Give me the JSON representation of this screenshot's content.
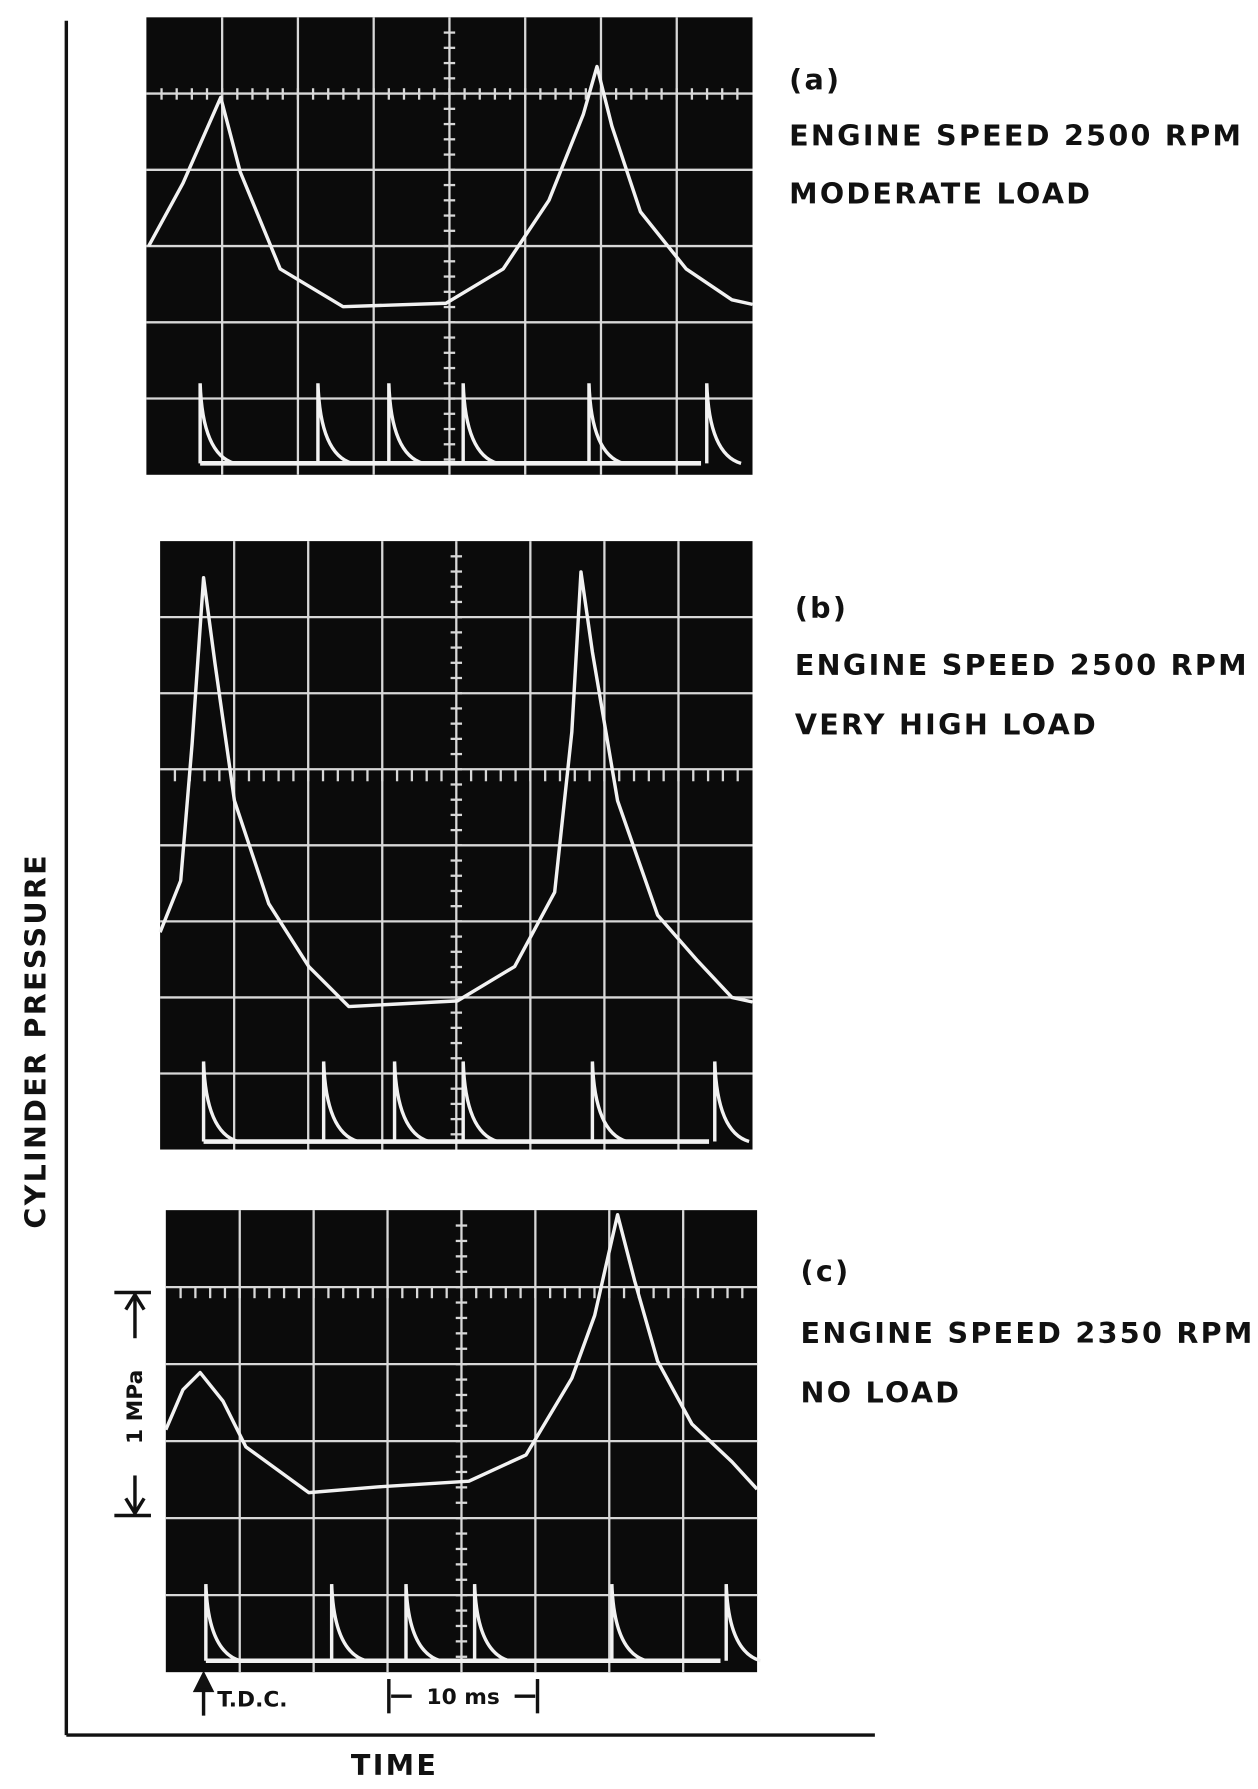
{
  "axis_labels": {
    "y": "CYLINDER PRESSURE",
    "x": "TIME"
  },
  "panels": [
    {
      "label": "(a)",
      "lines": [
        "ENGINE SPEED 2500 RPM",
        "MODERATE LOAD"
      ]
    },
    {
      "label": "(b)",
      "lines": [
        "ENGINE SPEED 2500 RPM",
        "VERY HIGH LOAD"
      ]
    },
    {
      "label": "(c)",
      "lines": [
        "ENGINE SPEED 2350 RPM",
        "NO LOAD"
      ]
    }
  ],
  "annotations": {
    "pressure_scale": "1 MPa",
    "tdc": "T.D.C.",
    "time_scale": "10 ms"
  }
}
